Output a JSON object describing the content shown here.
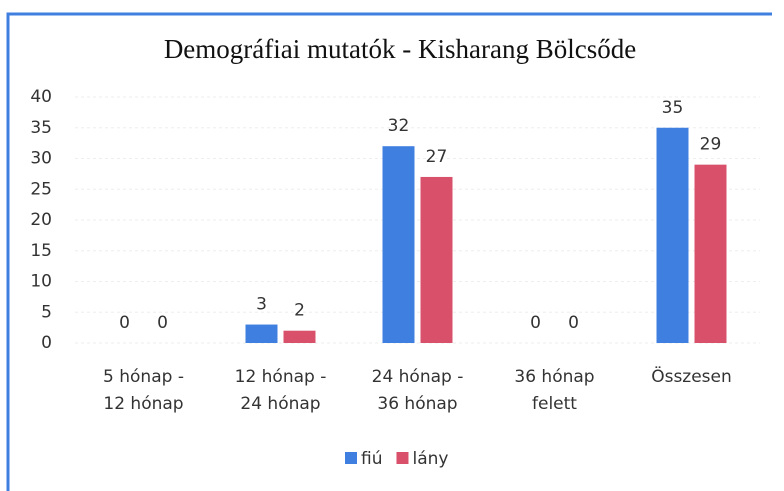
{
  "chart_data": {
    "type": "bar",
    "title": "Demográfiai mutatók - Kisharang Bölcsőde",
    "categories": [
      [
        "5 hónap -",
        "12 hónap"
      ],
      [
        "12 hónap -",
        "24 hónap"
      ],
      [
        "24 hónap -",
        "36 hónap"
      ],
      [
        "36 hónap",
        "felett"
      ],
      [
        "Összesen"
      ]
    ],
    "series": [
      {
        "name": "fiú",
        "color": "#3f7fe0",
        "values": [
          0,
          3,
          32,
          0,
          35
        ]
      },
      {
        "name": "lány",
        "color": "#d9506b",
        "values": [
          0,
          2,
          27,
          0,
          29
        ]
      }
    ],
    "ylim": [
      0,
      40
    ],
    "yticks": [
      0,
      5,
      10,
      15,
      20,
      25,
      30,
      35,
      40
    ],
    "grid": true,
    "legend": "bottom"
  }
}
